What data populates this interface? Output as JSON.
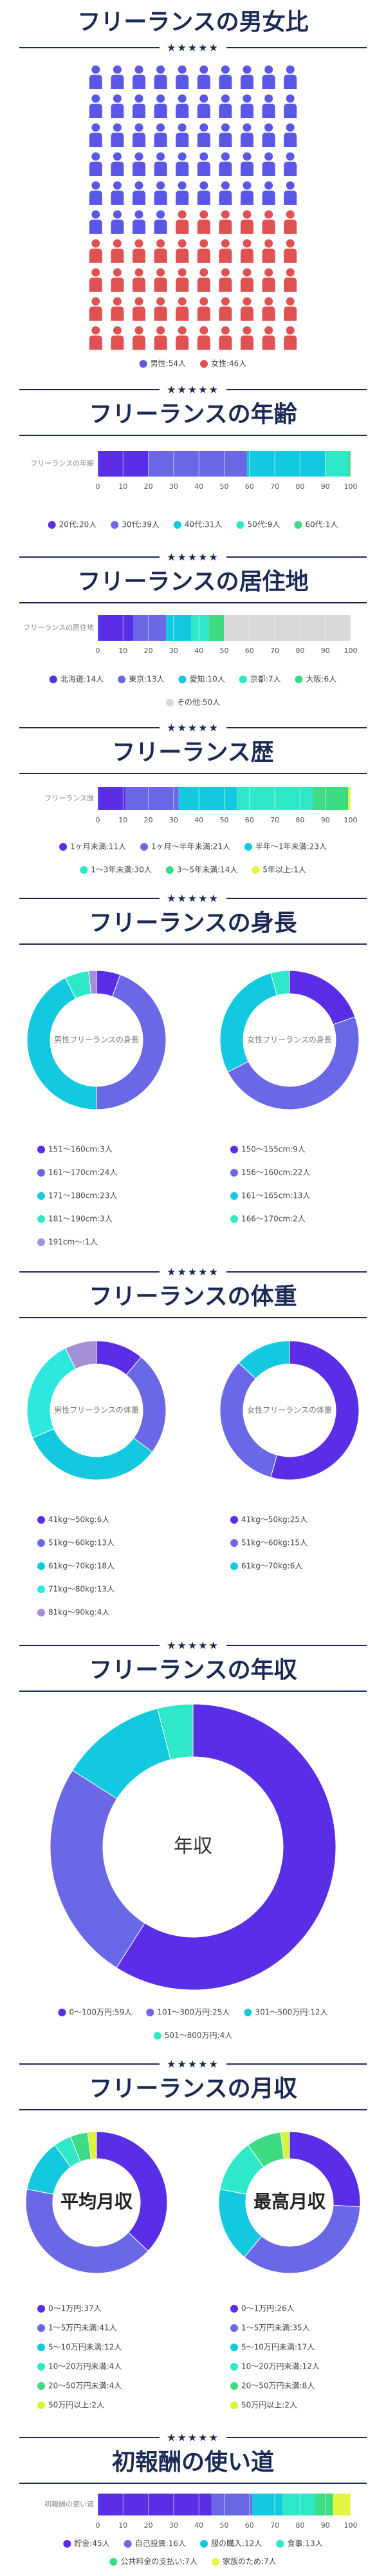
{
  "stars": "★★★★★",
  "chart_data": [
    {
      "type": "pictogram",
      "title": "フリーランスの男女比",
      "value_labels": [
        "男性:54人",
        "女性:46人"
      ],
      "values": [
        54,
        46
      ],
      "colors": [
        "#5b57e6",
        "#e05252"
      ]
    },
    {
      "type": "stacked_bar",
      "title": "フリーランスの年齢",
      "axis_label": "フリーランスの年齢",
      "value_labels": [
        "20代:20人",
        "30代:39人",
        "40代:31人",
        "50代:9人",
        "60代:1人"
      ],
      "values": [
        20,
        39,
        31,
        9,
        1
      ],
      "colors": [
        "#5a2de6",
        "#6b68e8",
        "#12c9e0",
        "#2ee8c8",
        "#3ddc84"
      ],
      "xlim": [
        0,
        100
      ],
      "xticks": [
        0,
        10,
        20,
        30,
        40,
        50,
        60,
        70,
        80,
        90,
        100
      ]
    },
    {
      "type": "stacked_bar",
      "title": "フリーランスの居住地",
      "axis_label": "フリーランスの居住地",
      "value_labels": [
        "北海道:14人",
        "東京:13人",
        "愛知:10人",
        "京都:7人",
        "大阪:6人",
        "その他:50人"
      ],
      "values": [
        14,
        13,
        10,
        7,
        6,
        50
      ],
      "colors": [
        "#5a2de6",
        "#6b68e8",
        "#12c9e0",
        "#2ee8c8",
        "#3ddc84",
        "#d9d9d9"
      ],
      "xlim": [
        0,
        100
      ],
      "xticks": [
        0,
        10,
        20,
        30,
        40,
        50,
        60,
        70,
        80,
        90,
        100
      ]
    },
    {
      "type": "stacked_bar",
      "title": "フリーランス歴",
      "axis_label": "フリーランス歴",
      "value_labels": [
        "1ヶ月未満:11人",
        "1ヶ月〜半年未満:21人",
        "半年〜1年未満:23人",
        "1〜3年未満:30人",
        "3〜5年未満:14人",
        "5年以上:1人"
      ],
      "values": [
        11,
        21,
        23,
        30,
        14,
        1
      ],
      "colors": [
        "#5a2de6",
        "#6b68e8",
        "#12c9e0",
        "#2ee8c8",
        "#3ddc84",
        "#e4f542"
      ],
      "xlim": [
        0,
        100
      ],
      "xticks": [
        0,
        10,
        20,
        30,
        40,
        50,
        60,
        70,
        80,
        90,
        100
      ]
    },
    {
      "type": "donut",
      "title": "フリーランスの身長",
      "donuts": [
        {
          "center_label": "男性フリーランスの身長",
          "value_labels": [
            "151〜160cm:3人",
            "161〜170cm:24人",
            "171〜180cm:23人",
            "181〜190cm:3人",
            "191cm〜:1人"
          ],
          "values": [
            3,
            24,
            23,
            3,
            1
          ],
          "colors": [
            "#5a2de6",
            "#6b68e8",
            "#12c9e0",
            "#2ee8c8",
            "#a58fd6"
          ]
        },
        {
          "center_label": "女性フリーランスの身長",
          "value_labels": [
            "150〜155cm:9人",
            "156〜160cm:22人",
            "161〜165cm:13人",
            "166〜170cm:2人"
          ],
          "values": [
            9,
            22,
            13,
            2
          ],
          "colors": [
            "#5a2de6",
            "#6b68e8",
            "#12c9e0",
            "#2ee8c8"
          ]
        }
      ]
    },
    {
      "type": "donut",
      "title": "フリーランスの体重",
      "donuts": [
        {
          "center_label": "男性フリーランスの体重",
          "value_labels": [
            "41kg〜50kg:6人",
            "51kg〜60kg:13人",
            "61kg〜70kg:18人",
            "71kg〜80kg:13人",
            "81kg〜90kg:4人"
          ],
          "values": [
            6,
            13,
            18,
            13,
            4
          ],
          "colors": [
            "#5a2de6",
            "#6b68e8",
            "#12c9e0",
            "#2ee8e0",
            "#a58fd6"
          ]
        },
        {
          "center_label": "女性フリーランスの体重",
          "value_labels": [
            "41kg〜50kg:25人",
            "51kg〜60kg:15人",
            "61kg〜70kg:6人"
          ],
          "values": [
            25,
            15,
            6
          ],
          "colors": [
            "#5a2de6",
            "#6b68e8",
            "#12c9e0"
          ]
        }
      ]
    },
    {
      "type": "donut",
      "title": "フリーランスの年収",
      "donuts": [
        {
          "center_label": "年収",
          "value_labels": [
            "0〜100万円:59人",
            "101〜300万円:25人",
            "301〜500万円:12人",
            "501〜800万円:4人"
          ],
          "values": [
            59,
            25,
            12,
            4
          ],
          "colors": [
            "#5a2de6",
            "#6b68e8",
            "#12c9e0",
            "#2ee8c8"
          ]
        }
      ]
    },
    {
      "type": "donut",
      "title": "フリーランスの月収",
      "donuts": [
        {
          "center_label": "平均月収",
          "value_labels": [
            "0〜1万円:37人",
            "1〜5万円未満:41人",
            "5〜10万円未満:12人",
            "10〜20万円未満:4人",
            "20〜50万円未満:4人",
            "50万円以上:2人"
          ],
          "values": [
            37,
            41,
            12,
            4,
            4,
            2
          ],
          "colors": [
            "#5a2de6",
            "#6b68e8",
            "#12c9e0",
            "#2ee8c8",
            "#3ddc84",
            "#d8f53a"
          ]
        },
        {
          "center_label": "最高月収",
          "value_labels": [
            "0〜1万円:26人",
            "1〜5万円未満:35人",
            "5〜10万円未満:17人",
            "10〜20万円未満:12人",
            "20〜50万円未満:8人",
            "50万円以上:2人"
          ],
          "values": [
            26,
            35,
            17,
            12,
            8,
            2
          ],
          "colors": [
            "#5a2de6",
            "#6b68e8",
            "#12c9e0",
            "#2ee8c8",
            "#3ddc84",
            "#d8f53a"
          ]
        }
      ]
    },
    {
      "type": "stacked_bar",
      "title": "初報酬の使い道",
      "axis_label": "初報酬の使い道",
      "value_labels": [
        "貯金:45人",
        "自己投資:16人",
        "服の購入:12人",
        "食事:13人",
        "公共料金の支払い:7人",
        "家族のため:7人"
      ],
      "values": [
        45,
        16,
        12,
        13,
        7,
        7
      ],
      "colors": [
        "#5a2de6",
        "#6b68e8",
        "#12c9e0",
        "#2ee8c8",
        "#3ddc84",
        "#e4f542"
      ],
      "xlim": [
        0,
        100
      ],
      "xticks": [
        0,
        10,
        20,
        30,
        40,
        50,
        60,
        70,
        80,
        90,
        100
      ]
    }
  ]
}
